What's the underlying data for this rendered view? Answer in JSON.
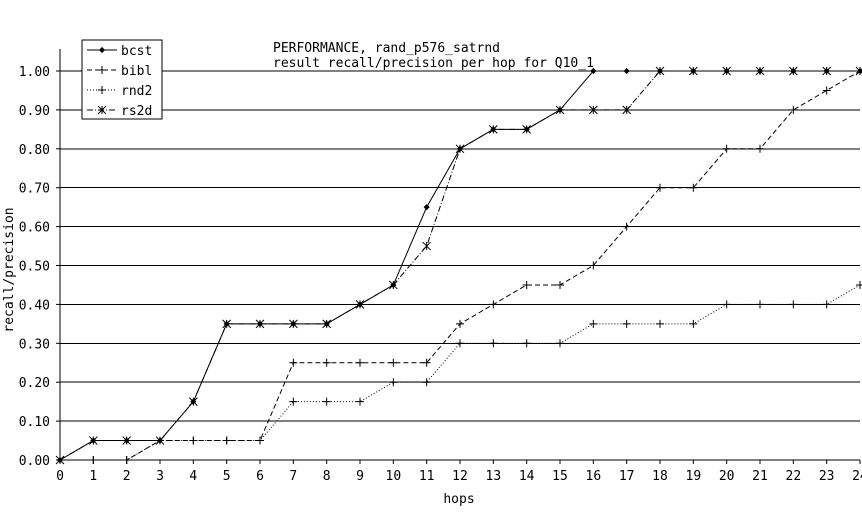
{
  "chart_data": {
    "type": "line",
    "title": "PERFORMANCE, rand_p576_satrnd",
    "subtitle": "result recall/precision per hop for Q10_1",
    "xlabel": "hops",
    "ylabel": "recall/precision",
    "xlim": [
      0,
      24
    ],
    "ylim": [
      0,
      1.0
    ],
    "xticks": [
      "0",
      "1",
      "2",
      "3",
      "4",
      "5",
      "6",
      "7",
      "8",
      "9",
      "10",
      "11",
      "12",
      "13",
      "14",
      "15",
      "16",
      "17",
      "18",
      "19",
      "20",
      "21",
      "22",
      "23",
      "24"
    ],
    "yticks": [
      "0.00",
      "0.10",
      "0.20",
      "0.30",
      "0.40",
      "0.50",
      "0.60",
      "0.70",
      "0.80",
      "0.90",
      "1.00"
    ],
    "grid": "horizontal",
    "legend_position": "top-left",
    "series": [
      {
        "name": "bcst",
        "line_style": "solid",
        "marker": "diamond",
        "x": [
          0,
          1,
          2,
          3,
          4,
          5,
          6,
          7,
          8,
          9,
          10,
          11,
          12,
          13,
          14,
          15,
          16,
          17,
          18,
          19,
          20,
          21,
          22,
          23,
          24
        ],
        "y": [
          0,
          0.05,
          0.05,
          0.05,
          0.15,
          0.35,
          0.35,
          0.35,
          0.35,
          0.4,
          0.45,
          0.65,
          0.8,
          0.85,
          0.85,
          0.9,
          1.0,
          1.0,
          1.0,
          1.0,
          1.0,
          1.0,
          1.0,
          1.0,
          1.0
        ]
      },
      {
        "name": "bibl",
        "line_style": "dashed",
        "marker": "plus",
        "x": [
          0,
          1,
          2,
          3,
          4,
          5,
          6,
          7,
          8,
          9,
          10,
          11,
          12,
          13,
          14,
          15,
          16,
          17,
          18,
          19,
          20,
          21,
          22,
          23,
          24
        ],
        "y": [
          0,
          0,
          0,
          0.05,
          0.05,
          0.05,
          0.05,
          0.25,
          0.25,
          0.25,
          0.25,
          0.25,
          0.35,
          0.4,
          0.45,
          0.45,
          0.5,
          0.6,
          0.7,
          0.7,
          0.8,
          0.8,
          0.9,
          0.95,
          1.0
        ]
      },
      {
        "name": "rnd2",
        "line_style": "dotted",
        "marker": "plus",
        "x": [
          0,
          1,
          2,
          3,
          4,
          5,
          6,
          7,
          8,
          9,
          10,
          11,
          12,
          13,
          14,
          15,
          16,
          17,
          18,
          19,
          20,
          21,
          22,
          23,
          24
        ],
        "y": [
          0,
          0,
          0,
          0.05,
          0.05,
          0.05,
          0.05,
          0.15,
          0.15,
          0.15,
          0.2,
          0.2,
          0.3,
          0.3,
          0.3,
          0.3,
          0.35,
          0.35,
          0.35,
          0.35,
          0.4,
          0.4,
          0.4,
          0.4,
          0.45
        ]
      },
      {
        "name": "rs2d",
        "line_style": "dash-dot",
        "marker": "asterisk",
        "x": [
          0,
          1,
          2,
          3,
          4,
          5,
          6,
          7,
          8,
          9,
          10,
          11,
          12,
          13,
          14,
          15,
          16,
          17,
          18,
          19,
          20,
          21,
          22,
          23,
          24
        ],
        "y": [
          0,
          0.05,
          0.05,
          0.05,
          0.15,
          0.35,
          0.35,
          0.35,
          0.35,
          0.4,
          0.45,
          0.55,
          0.8,
          0.85,
          0.85,
          0.9,
          0.9,
          0.9,
          1.0,
          1.0,
          1.0,
          1.0,
          1.0,
          1.0,
          1.0
        ]
      }
    ]
  }
}
